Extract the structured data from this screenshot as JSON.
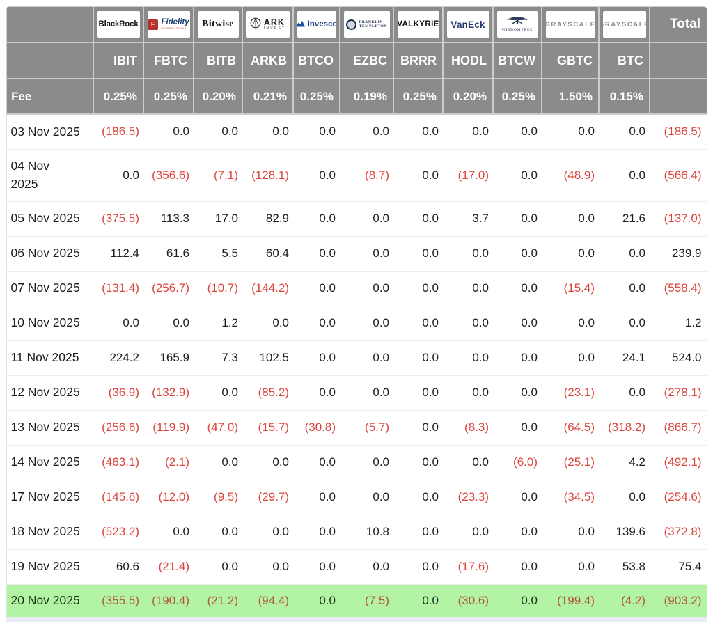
{
  "table": {
    "fee_label": "Fee",
    "total_label": "Total",
    "colors": {
      "header_bg": "#8b8b8b",
      "negative_red": "#dc453d",
      "highlight_row_bg": "#b3f4a4",
      "highlight_negative": "#b15837",
      "logo_fidelity_red": "#b5332a",
      "logo_navy": "#1d3f72"
    },
    "providers": [
      {
        "name": "BlackRock",
        "logo_style": "blackrock",
        "logo_text": "BlackRock",
        "ticker": "IBIT",
        "fee": "0.25%"
      },
      {
        "name": "Fidelity",
        "logo_style": "fidelity",
        "logo_badge": "F",
        "logo_text": "Fidelity",
        "logo_sub": "INTERNATIONAL",
        "ticker": "FBTC",
        "fee": "0.25%"
      },
      {
        "name": "Bitwise",
        "logo_style": "bitwise",
        "logo_text": "Bitwise",
        "ticker": "BITB",
        "fee": "0.20%"
      },
      {
        "name": "ARK Invest",
        "logo_style": "ark",
        "logo_text": "ARK",
        "logo_sub": "INVEST",
        "ticker": "ARKB",
        "fee": "0.21%"
      },
      {
        "name": "Invesco",
        "logo_style": "invesco",
        "logo_text": "Invesco",
        "ticker": "BTCO",
        "fee": "0.25%"
      },
      {
        "name": "Franklin Templeton",
        "logo_style": "franklin",
        "logo_text": "FRANKLIN",
        "logo_sub": "TEMPLETON",
        "ticker": "EZBC",
        "fee": "0.19%"
      },
      {
        "name": "Valkyrie",
        "logo_style": "valkyrie",
        "logo_text": "VALKYRIE",
        "ticker": "BRRR",
        "fee": "0.25%"
      },
      {
        "name": "VanEck",
        "logo_style": "vaneck",
        "logo_text": "VanEck",
        "ticker": "HODL",
        "fee": "0.20%"
      },
      {
        "name": "WisdomTree",
        "logo_style": "wisdomtree",
        "logo_text": "WISDOMTREE",
        "ticker": "BTCW",
        "fee": "0.25%"
      },
      {
        "name": "Grayscale",
        "logo_style": "grayscale",
        "logo_text": "GRAYSCALE",
        "ticker": "GBTC",
        "fee": "1.50%"
      },
      {
        "name": "Grayscale",
        "logo_style": "grayscale",
        "logo_text": "GRAYSCALE",
        "ticker": "BTC",
        "fee": "0.15%"
      }
    ],
    "rows": [
      {
        "date": "03 Nov 2025",
        "values": [
          "(186.5)",
          "0.0",
          "0.0",
          "0.0",
          "0.0",
          "0.0",
          "0.0",
          "0.0",
          "0.0",
          "0.0",
          "0.0"
        ],
        "total": "(186.5)"
      },
      {
        "date": "04 Nov\n2025",
        "two_line": true,
        "values": [
          "0.0",
          "(356.6)",
          "(7.1)",
          "(128.1)",
          "0.0",
          "(8.7)",
          "0.0",
          "(17.0)",
          "0.0",
          "(48.9)",
          "0.0"
        ],
        "total": "(566.4)"
      },
      {
        "date": "05 Nov 2025",
        "values": [
          "(375.5)",
          "113.3",
          "17.0",
          "82.9",
          "0.0",
          "0.0",
          "0.0",
          "3.7",
          "0.0",
          "0.0",
          "21.6"
        ],
        "total": "(137.0)"
      },
      {
        "date": "06 Nov 2025",
        "values": [
          "112.4",
          "61.6",
          "5.5",
          "60.4",
          "0.0",
          "0.0",
          "0.0",
          "0.0",
          "0.0",
          "0.0",
          "0.0"
        ],
        "total": "239.9"
      },
      {
        "date": "07 Nov 2025",
        "values": [
          "(131.4)",
          "(256.7)",
          "(10.7)",
          "(144.2)",
          "0.0",
          "0.0",
          "0.0",
          "0.0",
          "0.0",
          "(15.4)",
          "0.0"
        ],
        "total": "(558.4)"
      },
      {
        "date": "10 Nov 2025",
        "values": [
          "0.0",
          "0.0",
          "1.2",
          "0.0",
          "0.0",
          "0.0",
          "0.0",
          "0.0",
          "0.0",
          "0.0",
          "0.0"
        ],
        "total": "1.2"
      },
      {
        "date": "11 Nov 2025",
        "values": [
          "224.2",
          "165.9",
          "7.3",
          "102.5",
          "0.0",
          "0.0",
          "0.0",
          "0.0",
          "0.0",
          "0.0",
          "24.1"
        ],
        "total": "524.0"
      },
      {
        "date": "12 Nov 2025",
        "values": [
          "(36.9)",
          "(132.9)",
          "0.0",
          "(85.2)",
          "0.0",
          "0.0",
          "0.0",
          "0.0",
          "0.0",
          "(23.1)",
          "0.0"
        ],
        "total": "(278.1)"
      },
      {
        "date": "13 Nov 2025",
        "values": [
          "(256.6)",
          "(119.9)",
          "(47.0)",
          "(15.7)",
          "(30.8)",
          "(5.7)",
          "0.0",
          "(8.3)",
          "0.0",
          "(64.5)",
          "(318.2)"
        ],
        "total": "(866.7)"
      },
      {
        "date": "14 Nov 2025",
        "values": [
          "(463.1)",
          "(2.1)",
          "0.0",
          "0.0",
          "0.0",
          "0.0",
          "0.0",
          "0.0",
          "(6.0)",
          "(25.1)",
          "4.2"
        ],
        "total": "(492.1)"
      },
      {
        "date": "17 Nov 2025",
        "values": [
          "(145.6)",
          "(12.0)",
          "(9.5)",
          "(29.7)",
          "0.0",
          "0.0",
          "0.0",
          "(23.3)",
          "0.0",
          "(34.5)",
          "0.0"
        ],
        "total": "(254.6)"
      },
      {
        "date": "18 Nov 2025",
        "values": [
          "(523.2)",
          "0.0",
          "0.0",
          "0.0",
          "0.0",
          "10.8",
          "0.0",
          "0.0",
          "0.0",
          "0.0",
          "139.6"
        ],
        "total": "(372.8)"
      },
      {
        "date": "19 Nov 2025",
        "values": [
          "60.6",
          "(21.4)",
          "0.0",
          "0.0",
          "0.0",
          "0.0",
          "0.0",
          "(17.6)",
          "0.0",
          "0.0",
          "53.8"
        ],
        "total": "75.4"
      },
      {
        "date": "20 Nov 2025",
        "highlight": true,
        "values": [
          "(355.5)",
          "(190.4)",
          "(21.2)",
          "(94.4)",
          "0.0",
          "(7.5)",
          "0.0",
          "(30.6)",
          "0.0",
          "(199.4)",
          "(4.2)"
        ],
        "total": "(903.2)"
      }
    ]
  }
}
